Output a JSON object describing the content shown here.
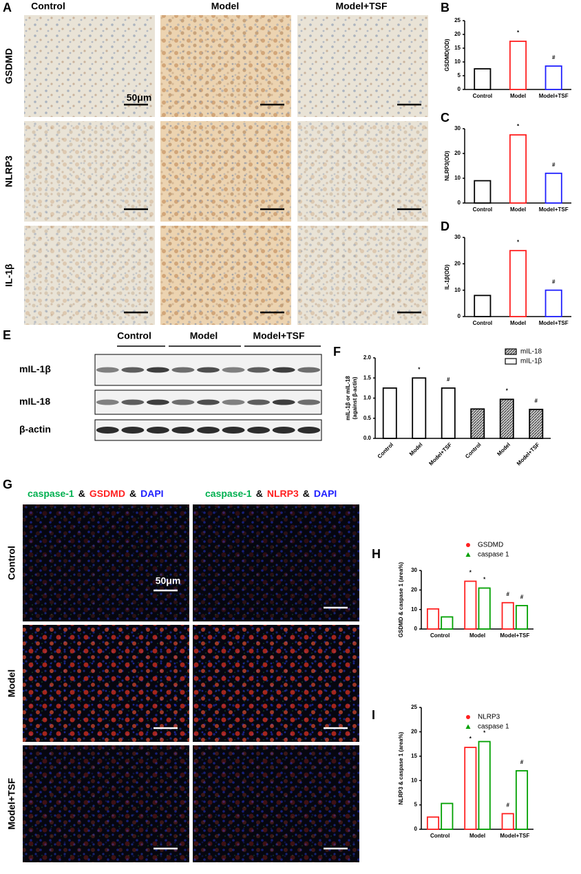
{
  "panel_a": {
    "label": "A",
    "columns": [
      "Control",
      "Model",
      "Model+TSF"
    ],
    "rows": [
      "GSDMD",
      "NLRP3",
      "IL-1β"
    ],
    "scale_bar": "50μm"
  },
  "panel_e": {
    "label": "E",
    "groups": [
      "Control",
      "Model",
      "Model+TSF"
    ],
    "rows": [
      "mIL-1β",
      "mIL-18",
      "β-actin"
    ]
  },
  "panel_g": {
    "label": "G",
    "stain_left": [
      "caspase-1",
      "&",
      "GSDMD",
      "&",
      "DAPI"
    ],
    "stain_right": [
      "caspase-1",
      "&",
      "NLRP3",
      "&",
      "DAPI"
    ],
    "rows": [
      "Control",
      "Model",
      "Model+TSF"
    ],
    "scale_bar": "50μm"
  },
  "chart_data": [
    {
      "type": "bar",
      "panel": "B",
      "ylabel": "GSDMD(OD)",
      "categories": [
        "Control",
        "Model",
        "Model+TSF"
      ],
      "values": [
        7.5,
        17.5,
        8.5
      ],
      "colors": [
        "#000000",
        "#ff2020",
        "#2020ff"
      ],
      "annotations": [
        null,
        "*",
        "#"
      ],
      "ylim": [
        0,
        25
      ],
      "yticks": [
        0,
        5,
        10,
        15,
        20,
        25
      ]
    },
    {
      "type": "bar",
      "panel": "C",
      "ylabel": "NLRP3(OD)",
      "categories": [
        "Control",
        "Model",
        "Model+TSF"
      ],
      "values": [
        9,
        27.5,
        12
      ],
      "colors": [
        "#000000",
        "#ff2020",
        "#2020ff"
      ],
      "annotations": [
        null,
        "*",
        "#"
      ],
      "ylim": [
        0,
        30
      ],
      "yticks": [
        0,
        10,
        20,
        30
      ]
    },
    {
      "type": "bar",
      "panel": "D",
      "ylabel": "IL-1β(OD)",
      "categories": [
        "Control",
        "Model",
        "Model+TSF"
      ],
      "values": [
        8,
        25,
        10
      ],
      "colors": [
        "#000000",
        "#ff2020",
        "#2020ff"
      ],
      "annotations": [
        null,
        "*",
        "#"
      ],
      "ylim": [
        0,
        30
      ],
      "yticks": [
        0,
        10,
        20,
        30
      ]
    },
    {
      "type": "bar",
      "panel": "F",
      "ylabel": [
        "mIL-1β or mIL-18",
        "(against β-actin)"
      ],
      "categories": [
        "Control",
        "Model",
        "Model+TSF",
        "Control",
        "Model",
        "Model+TSF"
      ],
      "series": [
        {
          "name": "mIL-18",
          "color": "#000000",
          "hatch": true,
          "marker": "square",
          "values": [
            null,
            null,
            null,
            0.73,
            0.97,
            0.72
          ],
          "annotations": [
            null,
            null,
            null,
            null,
            "*",
            "#"
          ]
        },
        {
          "name": "mIL-1β",
          "color": "#000000",
          "hatch": false,
          "marker": "square",
          "values": [
            1.25,
            1.5,
            1.25,
            null,
            null,
            null
          ],
          "annotations": [
            null,
            "*",
            "#",
            null,
            null,
            null
          ]
        }
      ],
      "ylim": [
        0,
        2
      ],
      "yticks": [
        {
          "value": 0,
          "label": "0.0"
        },
        0.5,
        {
          "value": 1,
          "label": "1.0"
        },
        1.5,
        {
          "value": 2,
          "label": "2.0"
        }
      ]
    },
    {
      "type": "bar",
      "panel": "H",
      "ylabel": "GSDMD & caspase 1 (area%)",
      "categories": [
        "Control",
        "Model",
        "Model+TSF"
      ],
      "series": [
        {
          "name": "GSDMD",
          "color": "#ff2020",
          "marker": "circle",
          "values": [
            10.3,
            24.5,
            13.5
          ],
          "annotations": [
            null,
            "*",
            "#"
          ]
        },
        {
          "name": "caspase 1",
          "color": "#00a000",
          "marker": "triangle",
          "values": [
            6.2,
            21,
            12
          ],
          "annotations": [
            null,
            "*",
            "#"
          ]
        }
      ],
      "ylim": [
        0,
        30
      ],
      "yticks": [
        0,
        10,
        20,
        30
      ]
    },
    {
      "type": "bar",
      "panel": "I",
      "ylabel": "NLRP3 & caspase 1 (area%)",
      "categories": [
        "Control",
        "Model",
        "Model+TSF"
      ],
      "series": [
        {
          "name": "NLRP3",
          "color": "#ff2020",
          "marker": "circle",
          "values": [
            2.5,
            16.8,
            3.2
          ],
          "annotations": [
            null,
            "*",
            "#"
          ]
        },
        {
          "name": "caspase 1",
          "color": "#00a000",
          "marker": "triangle",
          "values": [
            5.3,
            18,
            12
          ],
          "annotations": [
            null,
            "*",
            "#"
          ]
        }
      ],
      "ylim": [
        0,
        25
      ],
      "yticks": [
        0,
        5,
        10,
        15,
        20,
        25
      ]
    }
  ]
}
